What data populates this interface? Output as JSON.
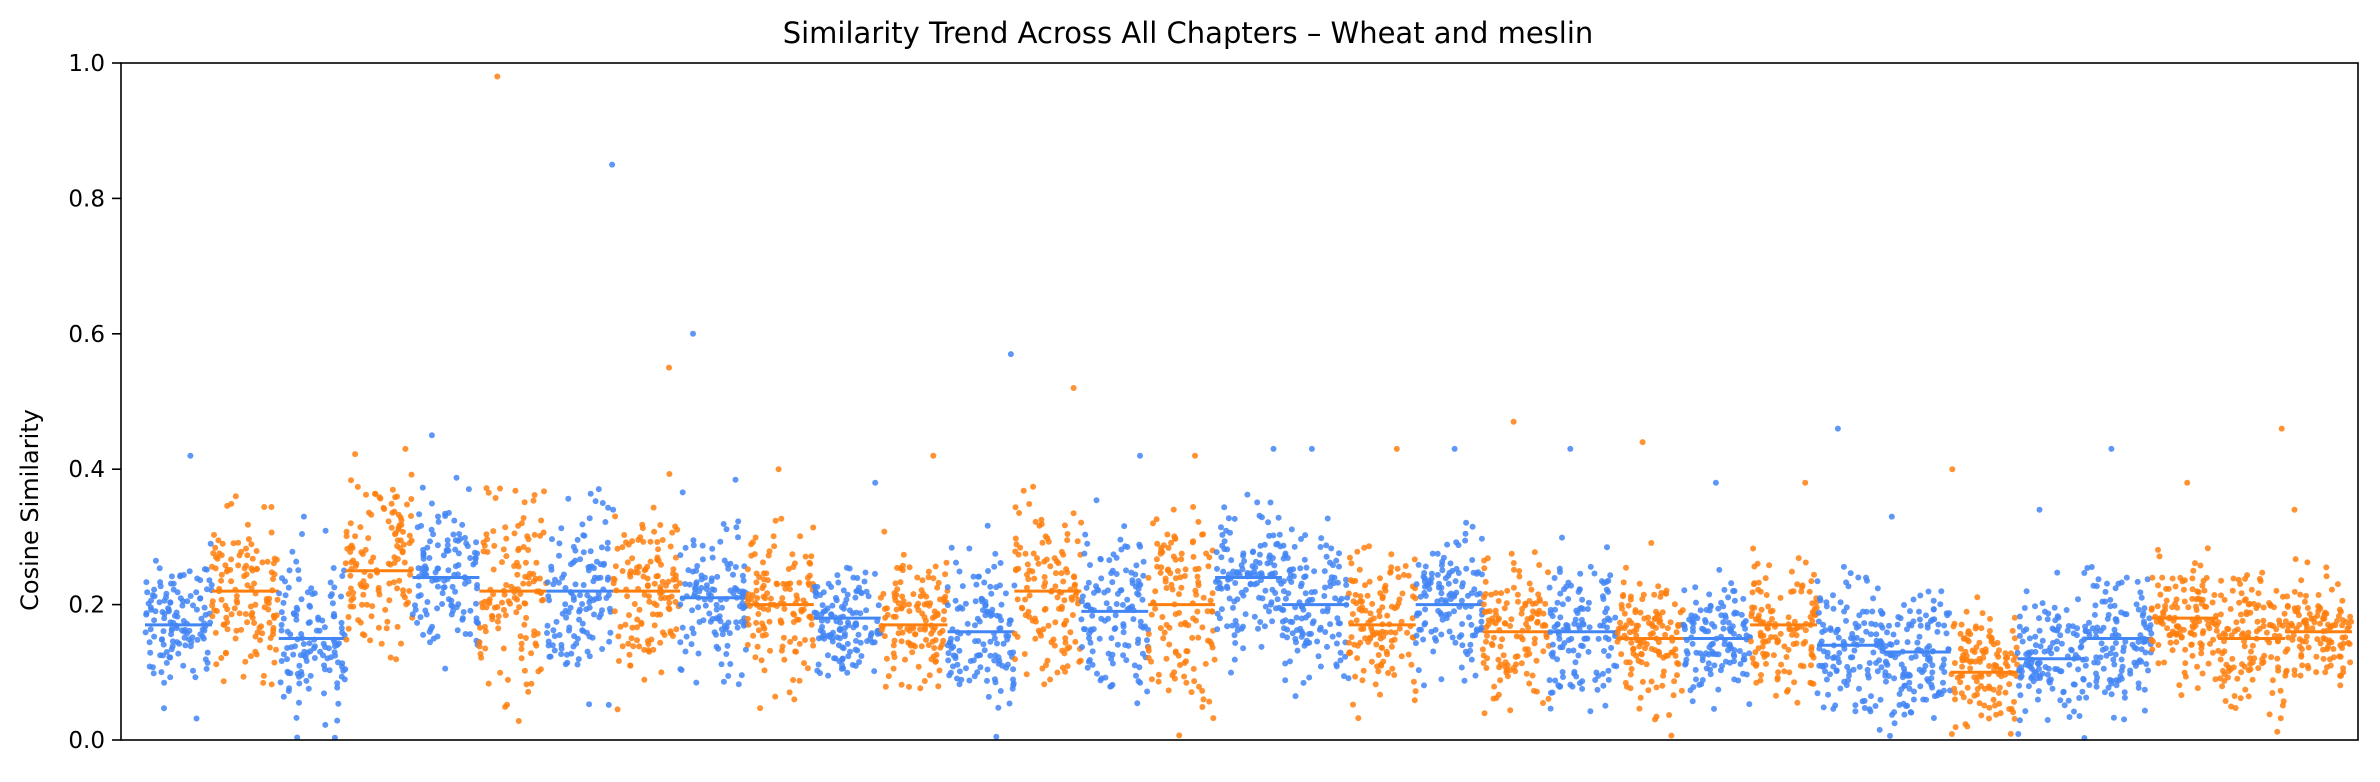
{
  "chart_data": {
    "type": "scatter",
    "title": "Similarity Trend Across All Chapters – Wheat and meslin",
    "xlabel": "",
    "ylabel": "Cosine Similarity",
    "ylim": [
      0,
      1
    ],
    "yticks": [
      "0.0",
      "0.2",
      "0.4",
      "0.6",
      "0.8",
      "1.0"
    ],
    "x_ticks_visible": false,
    "grid": false,
    "legend": "none",
    "colors": [
      "#4285f4",
      "#ff7f0e"
    ],
    "color_scheme": "alternating chapter segments: blue, orange",
    "segments": [
      {
        "color_index": 0,
        "median": 0.17,
        "spread": 0.07,
        "max": 0.42
      },
      {
        "color_index": 1,
        "median": 0.22,
        "spread": 0.08,
        "max": 0.36
      },
      {
        "color_index": 0,
        "median": 0.15,
        "spread": 0.08,
        "max": 0.33
      },
      {
        "color_index": 1,
        "median": 0.25,
        "spread": 0.09,
        "max": 0.43
      },
      {
        "color_index": 0,
        "median": 0.24,
        "spread": 0.08,
        "max": 0.45
      },
      {
        "color_index": 1,
        "median": 0.22,
        "spread": 0.1,
        "max": 0.98
      },
      {
        "color_index": 0,
        "median": 0.22,
        "spread": 0.09,
        "max": 0.85
      },
      {
        "color_index": 1,
        "median": 0.22,
        "spread": 0.09,
        "max": 0.55
      },
      {
        "color_index": 0,
        "median": 0.21,
        "spread": 0.08,
        "max": 0.6
      },
      {
        "color_index": 1,
        "median": 0.2,
        "spread": 0.08,
        "max": 0.4
      },
      {
        "color_index": 0,
        "median": 0.18,
        "spread": 0.05,
        "max": 0.38
      },
      {
        "color_index": 1,
        "median": 0.17,
        "spread": 0.07,
        "max": 0.42
      },
      {
        "color_index": 0,
        "median": 0.16,
        "spread": 0.07,
        "max": 0.57
      },
      {
        "color_index": 1,
        "median": 0.22,
        "spread": 0.09,
        "max": 0.52
      },
      {
        "color_index": 0,
        "median": 0.19,
        "spread": 0.08,
        "max": 0.42
      },
      {
        "color_index": 1,
        "median": 0.2,
        "spread": 0.1,
        "max": 0.42
      },
      {
        "color_index": 0,
        "median": 0.24,
        "spread": 0.07,
        "max": 0.43
      },
      {
        "color_index": 0,
        "median": 0.2,
        "spread": 0.08,
        "max": 0.43
      },
      {
        "color_index": 1,
        "median": 0.17,
        "spread": 0.07,
        "max": 0.43
      },
      {
        "color_index": 0,
        "median": 0.2,
        "spread": 0.07,
        "max": 0.43
      },
      {
        "color_index": 1,
        "median": 0.16,
        "spread": 0.07,
        "max": 0.47
      },
      {
        "color_index": 0,
        "median": 0.16,
        "spread": 0.07,
        "max": 0.43
      },
      {
        "color_index": 1,
        "median": 0.15,
        "spread": 0.07,
        "max": 0.44
      },
      {
        "color_index": 0,
        "median": 0.15,
        "spread": 0.06,
        "max": 0.38
      },
      {
        "color_index": 1,
        "median": 0.17,
        "spread": 0.07,
        "max": 0.38
      },
      {
        "color_index": 0,
        "median": 0.14,
        "spread": 0.07,
        "max": 0.46
      },
      {
        "color_index": 0,
        "median": 0.13,
        "spread": 0.06,
        "max": 0.33
      },
      {
        "color_index": 1,
        "median": 0.1,
        "spread": 0.06,
        "max": 0.4
      },
      {
        "color_index": 0,
        "median": 0.12,
        "spread": 0.06,
        "max": 0.34
      },
      {
        "color_index": 0,
        "median": 0.15,
        "spread": 0.07,
        "max": 0.43
      },
      {
        "color_index": 1,
        "median": 0.18,
        "spread": 0.06,
        "max": 0.38
      },
      {
        "color_index": 1,
        "median": 0.15,
        "spread": 0.07,
        "max": 0.46
      },
      {
        "color_index": 1,
        "median": 0.16,
        "spread": 0.05,
        "max": 0.34
      }
    ]
  }
}
